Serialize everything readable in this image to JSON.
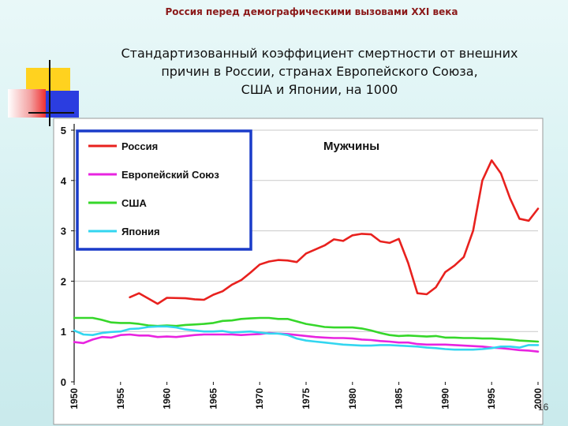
{
  "header": "Россия перед демографическими вызовами XXI века",
  "title_lines": [
    "Стандартизованный коэффициент смертности от внешних",
    "причин в России, странах Европейского Союза,",
    "США и Японии, на 1000"
  ],
  "page_number": "16",
  "colors": {
    "russia": "#e8211e",
    "eu": "#e824e0",
    "usa": "#36d72a",
    "japan": "#33d6f0",
    "legend_border": "#1a3cc9",
    "deco_yellow": "#ffd21f",
    "deco_blue": "#2b3de0",
    "deco_red": "#f03030"
  },
  "chart_data": {
    "type": "line",
    "panel_title": "Мужчины",
    "xlabel": "",
    "ylabel": "",
    "xlim": [
      1950,
      2000
    ],
    "ylim": [
      0,
      5
    ],
    "x_ticks": [
      "1950",
      "1955",
      "1960",
      "1965",
      "1970",
      "1975",
      "1980",
      "1985",
      "1990",
      "1995",
      "2000"
    ],
    "y_ticks": [
      "0",
      "1",
      "2",
      "3",
      "4",
      "5"
    ],
    "grid": true,
    "legend_position": "top-left",
    "series": [
      {
        "name": "Россия",
        "color_key": "russia",
        "x": [
          1956,
          1957,
          1959,
          1960,
          1962,
          1963,
          1964,
          1965,
          1966,
          1967,
          1968,
          1969,
          1970,
          1971,
          1972,
          1973,
          1974,
          1975,
          1976,
          1977,
          1978,
          1979,
          1980,
          1981,
          1982,
          1983,
          1984,
          1985,
          1986,
          1987,
          1988,
          1989,
          1990,
          1991,
          1992,
          1993,
          1994,
          1995,
          1996,
          1997,
          1998,
          1999,
          2000
        ],
        "y": [
          1.68,
          1.76,
          1.55,
          1.67,
          1.66,
          1.64,
          1.63,
          1.73,
          1.8,
          1.93,
          2.02,
          2.17,
          2.33,
          2.39,
          2.42,
          2.41,
          2.38,
          2.55,
          2.63,
          2.71,
          2.83,
          2.8,
          2.91,
          2.94,
          2.93,
          2.79,
          2.76,
          2.84,
          2.36,
          1.76,
          1.74,
          1.88,
          2.18,
          2.31,
          2.48,
          3.0,
          4.0,
          4.4,
          4.14,
          3.64,
          3.24,
          3.2,
          3.44
        ]
      },
      {
        "name": "Европейский Союз",
        "color_key": "eu",
        "x": [
          1950,
          1951,
          1952,
          1953,
          1954,
          1955,
          1956,
          1957,
          1958,
          1959,
          1960,
          1961,
          1962,
          1963,
          1964,
          1965,
          1966,
          1967,
          1968,
          1969,
          1970,
          1971,
          1972,
          1973,
          1974,
          1975,
          1976,
          1977,
          1978,
          1979,
          1980,
          1981,
          1982,
          1983,
          1984,
          1985,
          1986,
          1987,
          1988,
          1989,
          1990,
          1991,
          1992,
          1993,
          1994,
          1995,
          1996,
          1997,
          1998,
          1999,
          2000
        ],
        "y": [
          0.79,
          0.77,
          0.84,
          0.89,
          0.88,
          0.93,
          0.94,
          0.92,
          0.92,
          0.89,
          0.9,
          0.89,
          0.91,
          0.93,
          0.94,
          0.94,
          0.94,
          0.94,
          0.93,
          0.94,
          0.95,
          0.97,
          0.96,
          0.95,
          0.93,
          0.91,
          0.89,
          0.88,
          0.87,
          0.87,
          0.86,
          0.84,
          0.83,
          0.81,
          0.8,
          0.78,
          0.78,
          0.75,
          0.74,
          0.74,
          0.74,
          0.73,
          0.72,
          0.71,
          0.7,
          0.68,
          0.67,
          0.65,
          0.63,
          0.62,
          0.6
        ]
      },
      {
        "name": "США",
        "color_key": "usa",
        "x": [
          1950,
          1951,
          1952,
          1953,
          1954,
          1955,
          1956,
          1957,
          1958,
          1959,
          1960,
          1961,
          1962,
          1963,
          1964,
          1965,
          1966,
          1967,
          1968,
          1969,
          1970,
          1971,
          1972,
          1973,
          1974,
          1975,
          1976,
          1977,
          1978,
          1979,
          1980,
          1981,
          1982,
          1983,
          1984,
          1985,
          1986,
          1987,
          1988,
          1989,
          1990,
          1991,
          1992,
          1993,
          1994,
          1995,
          1996,
          1997,
          1998,
          1999,
          2000
        ],
        "y": [
          1.27,
          1.27,
          1.27,
          1.23,
          1.18,
          1.17,
          1.17,
          1.15,
          1.12,
          1.11,
          1.12,
          1.11,
          1.13,
          1.14,
          1.15,
          1.17,
          1.21,
          1.22,
          1.25,
          1.26,
          1.27,
          1.27,
          1.25,
          1.25,
          1.2,
          1.15,
          1.12,
          1.09,
          1.08,
          1.08,
          1.08,
          1.06,
          1.02,
          0.97,
          0.93,
          0.91,
          0.92,
          0.91,
          0.9,
          0.91,
          0.88,
          0.88,
          0.87,
          0.87,
          0.86,
          0.86,
          0.85,
          0.84,
          0.82,
          0.81,
          0.8
        ]
      },
      {
        "name": "Япония",
        "color_key": "japan",
        "x": [
          1950,
          1951,
          1952,
          1953,
          1954,
          1955,
          1956,
          1957,
          1958,
          1959,
          1960,
          1961,
          1962,
          1963,
          1964,
          1965,
          1966,
          1967,
          1968,
          1969,
          1970,
          1971,
          1972,
          1973,
          1974,
          1975,
          1976,
          1977,
          1978,
          1979,
          1980,
          1981,
          1982,
          1983,
          1984,
          1985,
          1986,
          1987,
          1988,
          1989,
          1990,
          1991,
          1992,
          1993,
          1994,
          1995,
          1996,
          1997,
          1998,
          1999,
          2000
        ],
        "y": [
          1.02,
          0.94,
          0.93,
          0.97,
          0.99,
          1.0,
          1.05,
          1.06,
          1.09,
          1.1,
          1.1,
          1.08,
          1.04,
          1.02,
          1.0,
          1.0,
          1.01,
          0.98,
          0.99,
          1.0,
          0.98,
          0.96,
          0.96,
          0.93,
          0.86,
          0.82,
          0.8,
          0.78,
          0.76,
          0.74,
          0.73,
          0.72,
          0.72,
          0.73,
          0.73,
          0.72,
          0.71,
          0.7,
          0.68,
          0.67,
          0.65,
          0.64,
          0.64,
          0.64,
          0.65,
          0.67,
          0.7,
          0.7,
          0.68,
          0.73,
          0.73
        ]
      }
    ]
  }
}
